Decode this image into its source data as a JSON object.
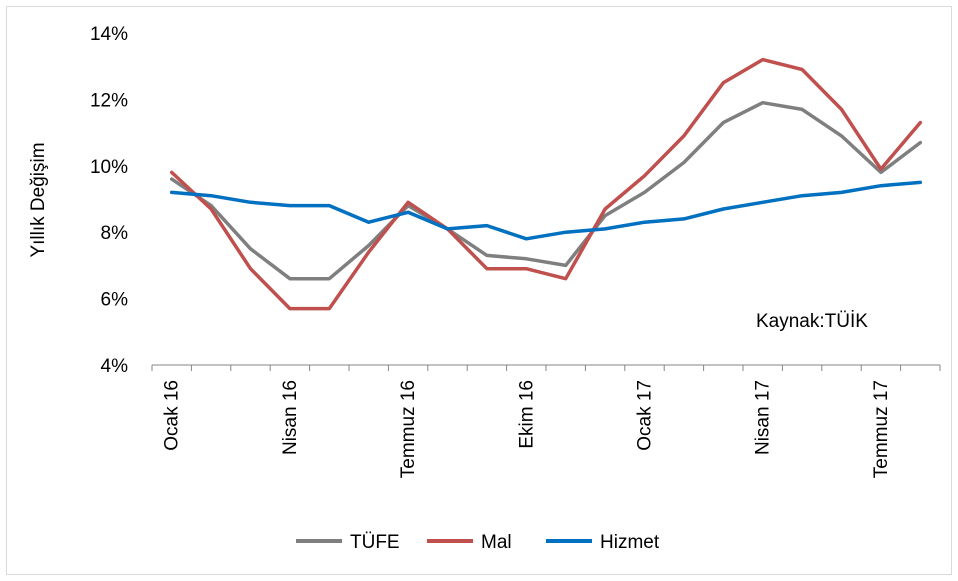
{
  "chart_data": {
    "type": "line",
    "title": "",
    "ylabel": "Yıllık Değişim",
    "xlabel": "",
    "annotation": "Kaynak:TÜİK",
    "ylim": [
      4,
      14
    ],
    "ytick_labels": [
      "4%",
      "6%",
      "8%",
      "10%",
      "12%",
      "14%"
    ],
    "yticks": [
      4,
      6,
      8,
      10,
      12,
      14
    ],
    "grid": false,
    "legend_position": "bottom",
    "months": [
      "2016-01",
      "2016-02",
      "2016-03",
      "2016-04",
      "2016-05",
      "2016-06",
      "2016-07",
      "2016-08",
      "2016-09",
      "2016-10",
      "2016-11",
      "2016-12",
      "2017-01",
      "2017-02",
      "2017-03",
      "2017-04",
      "2017-05",
      "2017-06",
      "2017-07",
      "2017-08"
    ],
    "x_tick_labels": [
      {
        "month": "2016-01",
        "label": "Ocak 16"
      },
      {
        "month": "2016-04",
        "label": "Nisan 16"
      },
      {
        "month": "2016-07",
        "label": "Temmuz 16"
      },
      {
        "month": "2016-10",
        "label": "Ekim 16"
      },
      {
        "month": "2017-01",
        "label": "Ocak 17"
      },
      {
        "month": "2017-04",
        "label": "Nisan 17"
      },
      {
        "month": "2017-07",
        "label": "Temmuz 17"
      }
    ],
    "series": [
      {
        "name": "TÜFE",
        "color": "#7f7f7f",
        "values": [
          9.6,
          8.8,
          7.5,
          6.6,
          6.6,
          7.6,
          8.8,
          8.1,
          7.3,
          7.2,
          7.0,
          8.5,
          9.2,
          10.1,
          11.3,
          11.9,
          11.7,
          10.9,
          9.8,
          10.7
        ]
      },
      {
        "name": "Mal",
        "color": "#c0504d",
        "values": [
          9.8,
          8.7,
          6.9,
          5.7,
          5.7,
          7.4,
          8.9,
          8.1,
          6.9,
          6.9,
          6.6,
          8.7,
          9.7,
          10.9,
          12.5,
          13.2,
          12.9,
          11.7,
          9.9,
          11.3
        ]
      },
      {
        "name": "Hizmet",
        "color": "#0070c0",
        "values": [
          9.2,
          9.1,
          8.9,
          8.8,
          8.8,
          8.3,
          8.6,
          8.1,
          8.2,
          7.8,
          8.0,
          8.1,
          8.3,
          8.4,
          8.7,
          8.9,
          9.1,
          9.2,
          9.4,
          9.5
        ]
      }
    ]
  }
}
